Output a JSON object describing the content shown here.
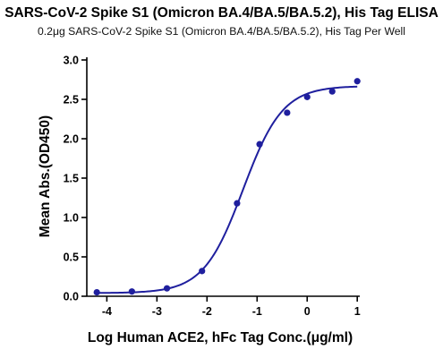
{
  "chart_data": {
    "type": "scatter",
    "title": "SARS-CoV-2 Spike S1 (Omicron BA.4/BA.5/BA.5.2), His Tag ELISA",
    "subtitle": "0.2μg SARS-CoV-2 Spike S1 (Omicron BA.4/BA.5/BA.5.2), His Tag Per Well",
    "xlabel": "Log Human ACE2, hFc Tag Conc.(μg/ml)",
    "ylabel": "Mean Abs.(OD450)",
    "xlim": [
      -4.4,
      1.05
    ],
    "ylim": [
      0,
      3.0
    ],
    "xticks": [
      -4,
      -3,
      -2,
      -1,
      0,
      1
    ],
    "yticks": [
      0.0,
      0.5,
      1.0,
      1.5,
      2.0,
      2.5,
      3.0
    ],
    "xtick_labels": [
      "-4",
      "-3",
      "-2",
      "-1",
      "0",
      "1"
    ],
    "ytick_labels": [
      "0.0",
      "0.5",
      "1.0",
      "1.5",
      "2.0",
      "2.5",
      "3.0"
    ],
    "grid": false,
    "color": "#1f1f9e",
    "x": [
      -4.2,
      -3.5,
      -2.8,
      -2.1,
      -1.4,
      -0.95,
      -0.4,
      0.0,
      0.5,
      1.0
    ],
    "y": [
      0.05,
      0.06,
      0.1,
      0.32,
      1.18,
      1.93,
      2.33,
      2.53,
      2.6,
      2.73
    ],
    "fit": {
      "model": "4PL",
      "bottom": 0.04,
      "top": 2.67,
      "log_ec50": -1.28,
      "hill_slope": 1.1
    }
  }
}
